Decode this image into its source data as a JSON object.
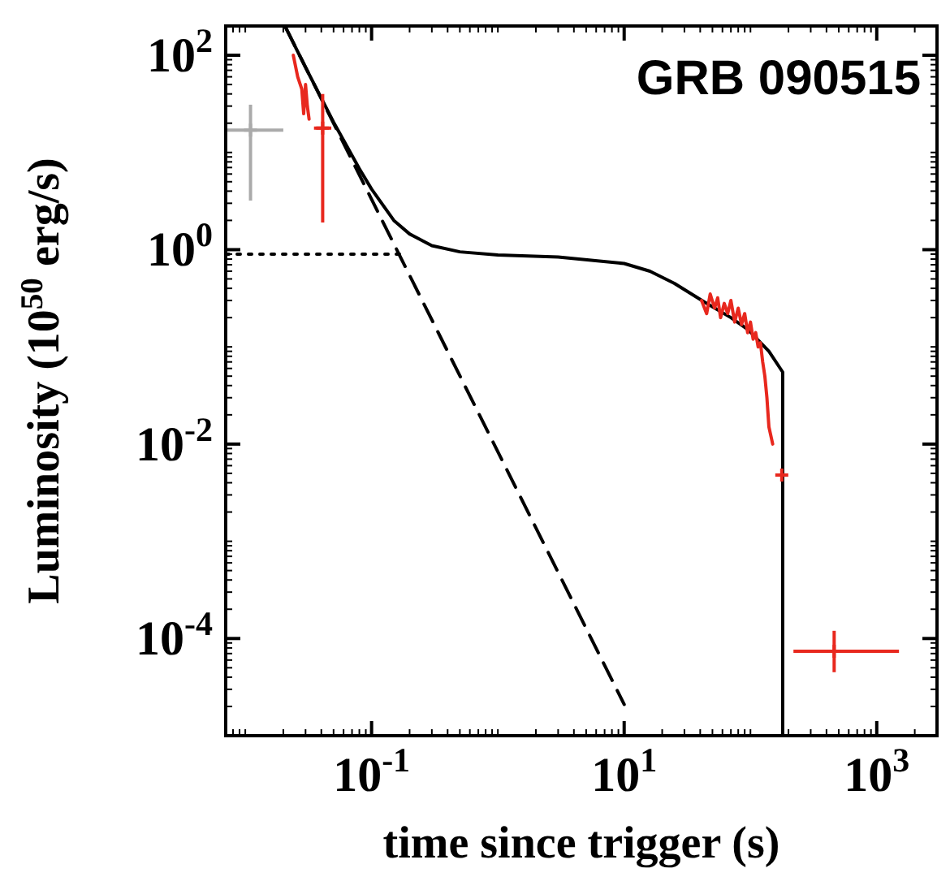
{
  "chart_data": {
    "type": "line",
    "xlabel": "time since trigger (s)",
    "ylabel": "Luminosity (10$^{50}$ erg/s)",
    "log": "xy",
    "xlim": [
      0.007,
      3000
    ],
    "ylim": [
      1e-05,
      200
    ],
    "xticks": [
      {
        "value": 0.1,
        "label": "10$^{-1}$"
      },
      {
        "value": 10,
        "label": "10$^{1}$"
      },
      {
        "value": 1000,
        "label": "10$^{3}$"
      }
    ],
    "yticks": [
      {
        "value": 0.0001,
        "label": "10$^{-4}$"
      },
      {
        "value": 0.01,
        "label": "10$^{-2}$"
      },
      {
        "value": 1,
        "label": "10$^{0}$"
      },
      {
        "value": 100,
        "label": "10$^{2}$"
      }
    ],
    "annotations": [
      "GRB 090515"
    ],
    "series": [
      {
        "color": "#000000",
        "line_style": "solid",
        "x": [
          0.021,
          0.03,
          0.05,
          0.08,
          0.1,
          0.15,
          0.2,
          0.3,
          0.5,
          1,
          3,
          10,
          16,
          25,
          43,
          70,
          96,
          140,
          180,
          180
        ],
        "values": [
          190,
          75,
          20.5,
          6.8,
          4.2,
          2,
          1.45,
          1.1,
          0.95,
          0.88,
          0.84,
          0.72,
          0.6,
          0.45,
          0.29,
          0.2,
          0.15,
          0.09,
          0.055,
          1e-05
        ]
      },
      {
        "color": "#000000",
        "line_style": "dashed",
        "x": [
          0.021,
          10
        ],
        "values": [
          190,
          2.1e-05
        ]
      },
      {
        "color": "#000000",
        "line_style": "dotted",
        "x": [
          0.007,
          0.17
        ],
        "values": [
          0.9,
          0.9
        ]
      },
      {
        "color": "#e8281e",
        "line_style": "solid",
        "x": [
          0.024,
          0.026,
          0.028,
          0.029,
          0.03,
          0.031,
          0.032
        ],
        "values": [
          100,
          60,
          45,
          25,
          50,
          30,
          22
        ]
      },
      {
        "color": "#e8281e",
        "line_style": "solid",
        "x": [
          41,
          45,
          48,
          52,
          55,
          58,
          62,
          66,
          70,
          75,
          80,
          85,
          90,
          95,
          100,
          105,
          110,
          115,
          120,
          125,
          130,
          135,
          140,
          150
        ],
        "values": [
          0.3,
          0.22,
          0.35,
          0.25,
          0.32,
          0.2,
          0.28,
          0.22,
          0.3,
          0.18,
          0.25,
          0.17,
          0.22,
          0.14,
          0.18,
          0.12,
          0.14,
          0.1,
          0.11,
          0.07,
          0.05,
          0.03,
          0.015,
          0.01
        ]
      },
      {
        "type": "scatter",
        "marker": "cross",
        "color": "#e8281e",
        "x": [
          0.041,
          177,
          460
        ],
        "values": [
          17.8,
          0.0048,
          7.4e-05
        ],
        "errors": [
          [
            1.9,
            40
          ],
          null,
          [
            4.5e-05,
            0.00012
          ]
        ],
        "xerrors": [
          [
            0.035,
            0.048
          ],
          [
            172,
            195
          ],
          [
            219,
            1500
          ]
        ]
      },
      {
        "type": "scatter",
        "marker": "cross",
        "color": "#aaaaaa",
        "x": [
          0.011
        ],
        "values": [
          17
        ],
        "errors": [
          [
            3.2,
            31
          ]
        ],
        "xerrors": [
          [
            0.0072,
            0.02
          ]
        ]
      }
    ]
  }
}
